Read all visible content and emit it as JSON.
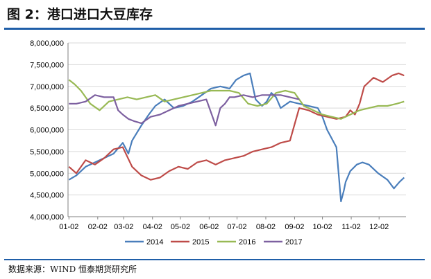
{
  "header": {
    "title": "图 2：港口进口大豆库存"
  },
  "footer": {
    "source": "数据来源：WIND  恒泰期货研究所"
  },
  "chart_data": {
    "type": "line",
    "title": "",
    "xlabel": "",
    "ylabel": "",
    "ylim": [
      4000000,
      8000000
    ],
    "y_ticks": [
      "4,000,000",
      "4,500,000",
      "5,000,000",
      "5,500,000",
      "6,000,000",
      "6,500,000",
      "7,000,000",
      "7,500,000",
      "8,000,000"
    ],
    "y_tick_values": [
      4000000,
      4500000,
      5000000,
      5500000,
      6000000,
      6500000,
      7000000,
      7500000,
      8000000
    ],
    "x_ticks": [
      "01-02",
      "02-02",
      "03-02",
      "04-02",
      "05-02",
      "06-02",
      "07-02",
      "08-02",
      "09-02",
      "10-02",
      "11-02",
      "12-02"
    ],
    "x_unit": "day-of-year",
    "x_range": [
      1,
      365
    ],
    "legend_position": "bottom",
    "series": [
      {
        "name": "2014",
        "color": "#4a7ebb",
        "x": [
          2,
          10,
          20,
          35,
          50,
          60,
          66,
          70,
          80,
          88,
          95,
          105,
          115,
          125,
          135,
          145,
          155,
          165,
          175,
          182,
          190,
          197,
          203,
          210,
          215,
          220,
          225,
          230,
          240,
          250,
          260,
          270,
          275,
          280,
          290,
          295,
          298,
          300,
          305,
          312,
          318,
          325,
          335,
          345,
          352,
          358,
          363
        ],
        "values": [
          4850000,
          4950000,
          5150000,
          5300000,
          5450000,
          5700000,
          5450000,
          5750000,
          6100000,
          6350000,
          6550000,
          6700000,
          6500000,
          6550000,
          6650000,
          6800000,
          6950000,
          7000000,
          6950000,
          7150000,
          7250000,
          7300000,
          6700000,
          6550000,
          6650000,
          6850000,
          6750000,
          6500000,
          6650000,
          6600000,
          6550000,
          6500000,
          6300000,
          6000000,
          5600000,
          4350000,
          4600000,
          4800000,
          5050000,
          5200000,
          5250000,
          5200000,
          5000000,
          4850000,
          4650000,
          4800000,
          4900000
        ]
      },
      {
        "name": "2015",
        "color": "#be4b48",
        "x": [
          2,
          10,
          20,
          30,
          40,
          50,
          60,
          70,
          80,
          90,
          100,
          110,
          120,
          130,
          140,
          150,
          160,
          170,
          180,
          190,
          200,
          210,
          220,
          230,
          240,
          250,
          260,
          270,
          280,
          290,
          300,
          305,
          310,
          315,
          320,
          325,
          330,
          340,
          350,
          357,
          363
        ],
        "values": [
          5150000,
          5000000,
          5300000,
          5200000,
          5350000,
          5550000,
          5600000,
          5150000,
          4950000,
          4850000,
          4900000,
          5050000,
          5150000,
          5100000,
          5250000,
          5300000,
          5200000,
          5300000,
          5350000,
          5400000,
          5500000,
          5550000,
          5600000,
          5700000,
          5750000,
          6500000,
          6450000,
          6350000,
          6300000,
          6250000,
          6300000,
          6450000,
          6350000,
          6600000,
          7000000,
          7100000,
          7200000,
          7100000,
          7250000,
          7300000,
          7250000
        ]
      },
      {
        "name": "2016",
        "color": "#98b954",
        "x": [
          2,
          8,
          15,
          25,
          35,
          45,
          55,
          65,
          75,
          85,
          95,
          105,
          115,
          125,
          135,
          145,
          155,
          165,
          175,
          185,
          195,
          205,
          215,
          225,
          235,
          245,
          255,
          265,
          275,
          285,
          295,
          305,
          315,
          325,
          335,
          345,
          355,
          363
        ],
        "values": [
          7150000,
          7050000,
          6900000,
          6600000,
          6450000,
          6650000,
          6700000,
          6750000,
          6700000,
          6750000,
          6800000,
          6650000,
          6700000,
          6750000,
          6800000,
          6850000,
          6900000,
          6900000,
          6900000,
          6850000,
          6600000,
          6550000,
          6600000,
          6850000,
          6900000,
          6850000,
          6550000,
          6450000,
          6350000,
          6300000,
          6250000,
          6350000,
          6450000,
          6500000,
          6550000,
          6550000,
          6600000,
          6650000
        ]
      },
      {
        "name": "2017",
        "color": "#7d60a0",
        "x": [
          2,
          10,
          20,
          30,
          40,
          50,
          55,
          60,
          66,
          72,
          80,
          90,
          100,
          110,
          120,
          130,
          140,
          150,
          155,
          160,
          165,
          170,
          175,
          180,
          190,
          200,
          210,
          220,
          230,
          240,
          250
        ],
        "values": [
          6600000,
          6600000,
          6650000,
          6800000,
          6750000,
          6750000,
          6450000,
          6350000,
          6250000,
          6200000,
          6150000,
          6300000,
          6350000,
          6450000,
          6550000,
          6600000,
          6650000,
          6700000,
          6400000,
          6100000,
          6500000,
          6600000,
          6750000,
          6750000,
          6800000,
          6750000,
          6800000,
          6800000,
          6800000,
          6750000,
          6700000
        ]
      }
    ]
  }
}
